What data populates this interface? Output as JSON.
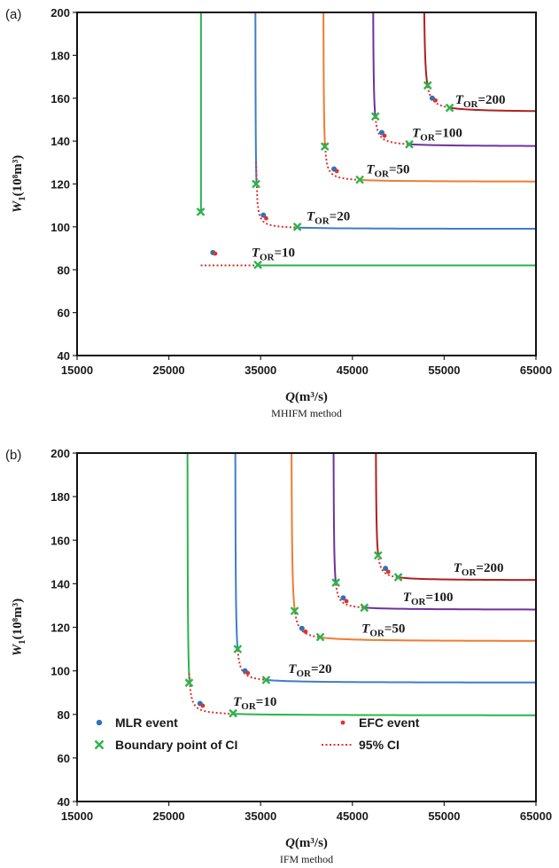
{
  "panels": [
    {
      "panel_label": "(a)",
      "caption": "MHIFM method",
      "x_label_main": "Q",
      "x_label_unit": "(m³/s)",
      "y_label_main": "W",
      "y_label_sub": "1",
      "y_label_unit": "(10⁸m³)"
    },
    {
      "panel_label": "(b)",
      "caption": "IFM method",
      "x_label_main": "Q",
      "x_label_unit": "(m³/s)",
      "y_label_main": "W",
      "y_label_sub": "1",
      "y_label_unit": "(10⁸m³)"
    }
  ],
  "legend": {
    "mlr": "MLR event",
    "efc": "EFC event",
    "boundary": "Boundary point of CI",
    "ci": "95% CI"
  },
  "colors": {
    "T10": "#2db34a",
    "T20": "#3f7dc7",
    "T50": "#ed7d31",
    "T100": "#7030a0",
    "T200": "#b02020",
    "mlr_marker": "#2e75b6",
    "efc_marker": "#e03030",
    "boundary_marker": "#2db34a",
    "ci_line": "#e03030"
  },
  "chart_data": [
    {
      "type": "line",
      "title": "",
      "xlabel": "Q(m³/s)",
      "ylabel": "W1(10⁸m³)",
      "xlim": [
        15000,
        65000
      ],
      "ylim": [
        40,
        200
      ],
      "xticks": [
        15000,
        25000,
        35000,
        45000,
        55000,
        65000
      ],
      "yticks": [
        40,
        60,
        80,
        100,
        120,
        140,
        160,
        180,
        200
      ],
      "series": [
        {
          "name": "T_OR=10",
          "label_main": "T",
          "label_sub": "OR",
          "label_value": "=10",
          "color_key": "T10",
          "Qa": 28500,
          "Wa": 82,
          "crit": [
            {
              "q": 28470,
              "w": 107
            },
            {
              "q": 34700,
              "w": 82.3
            }
          ],
          "mlr": [
            29800,
            88
          ],
          "efc": [
            30050,
            87.5
          ],
          "label_at": [
            34000,
            86
          ]
        },
        {
          "name": "T_OR=20",
          "label_main": "T",
          "label_sub": "OR",
          "label_value": "=20",
          "color_key": "T20",
          "Qa": 34400,
          "Wa": 99,
          "crit": [
            {
              "q": 34500,
              "w": 120
            },
            {
              "q": 39000,
              "w": 100
            }
          ],
          "mlr": [
            35300,
            105.5
          ],
          "efc": [
            35600,
            104
          ],
          "label_at": [
            40000,
            103
          ]
        },
        {
          "name": "T_OR=50",
          "label_main": "T",
          "label_sub": "OR",
          "label_value": "=50",
          "color_key": "T50",
          "Qa": 41800,
          "Wa": 121,
          "crit": [
            {
              "q": 42000,
              "w": 137.5
            },
            {
              "q": 45800,
              "w": 122
            }
          ],
          "mlr": [
            43000,
            127
          ],
          "efc": [
            43300,
            126
          ],
          "label_at": [
            46500,
            125
          ]
        },
        {
          "name": "T_OR=100",
          "label_main": "T",
          "label_sub": "OR",
          "label_value": "=100",
          "color_key": "T100",
          "Qa": 47200,
          "Wa": 137.5,
          "crit": [
            {
              "q": 47500,
              "w": 151.5
            },
            {
              "q": 51200,
              "w": 138.5
            }
          ],
          "mlr": [
            48200,
            144
          ],
          "efc": [
            48500,
            142.5
          ],
          "label_at": [
            51500,
            142
          ]
        },
        {
          "name": "T_OR=200",
          "label_main": "T",
          "label_sub": "OR",
          "label_value": "=200",
          "color_key": "T200",
          "Qa": 52700,
          "Wa": 153.5,
          "crit": [
            {
              "q": 53200,
              "w": 166
            },
            {
              "q": 55600,
              "w": 155.5
            }
          ],
          "mlr": [
            53700,
            160
          ],
          "efc": [
            54050,
            159
          ],
          "label_at": [
            56200,
            157.5
          ]
        }
      ]
    },
    {
      "type": "line",
      "title": "",
      "xlabel": "Q(m³/s)",
      "ylabel": "W1(10⁸m³)",
      "xlim": [
        15000,
        65000
      ],
      "ylim": [
        40,
        200
      ],
      "xticks": [
        15000,
        25000,
        35000,
        45000,
        55000,
        65000
      ],
      "yticks": [
        40,
        60,
        80,
        100,
        120,
        140,
        160,
        180,
        200
      ],
      "series": [
        {
          "name": "T_OR=10",
          "label_main": "T",
          "label_sub": "OR",
          "label_value": "=10",
          "color_key": "T10",
          "Qa": 27000,
          "Wa": 79.5,
          "crit": [
            {
              "q": 27200,
              "w": 94.5
            },
            {
              "q": 32000,
              "w": 80.5
            }
          ],
          "mlr": [
            28400,
            85
          ],
          "efc": [
            28700,
            84
          ],
          "label_at": [
            32000,
            84
          ]
        },
        {
          "name": "T_OR=20",
          "label_main": "T",
          "label_sub": "OR",
          "label_value": "=20",
          "color_key": "T20",
          "Qa": 32200,
          "Wa": 94.5,
          "crit": [
            {
              "q": 32500,
              "w": 110
            },
            {
              "q": 35600,
              "w": 95.8
            }
          ],
          "mlr": [
            33300,
            100
          ],
          "efc": [
            33600,
            99
          ],
          "label_at": [
            38000,
            99
          ]
        },
        {
          "name": "T_OR=50",
          "label_main": "T",
          "label_sub": "OR",
          "label_value": "=50",
          "color_key": "T50",
          "Qa": 38300,
          "Wa": 113.5,
          "crit": [
            {
              "q": 38700,
              "w": 127.5
            },
            {
              "q": 41500,
              "w": 115.5
            }
          ],
          "mlr": [
            39500,
            119.5
          ],
          "efc": [
            39900,
            118
          ],
          "label_at": [
            46000,
            117.5
          ]
        },
        {
          "name": "T_OR=100",
          "label_main": "T",
          "label_sub": "OR",
          "label_value": "=100",
          "color_key": "T100",
          "Qa": 42900,
          "Wa": 128,
          "crit": [
            {
              "q": 43200,
              "w": 140.5
            },
            {
              "q": 46300,
              "w": 129
            }
          ],
          "mlr": [
            44000,
            133.5
          ],
          "efc": [
            44350,
            132
          ],
          "label_at": [
            50500,
            132
          ]
        },
        {
          "name": "T_OR=200",
          "label_main": "T",
          "label_sub": "OR",
          "label_value": "=200",
          "color_key": "T200",
          "Qa": 47500,
          "Wa": 141.5,
          "crit": [
            {
              "q": 47800,
              "w": 153
            },
            {
              "q": 50000,
              "w": 143
            }
          ],
          "mlr": [
            48600,
            147
          ],
          "efc": [
            48900,
            145.5
          ],
          "label_at": [
            56000,
            145.5
          ]
        }
      ]
    }
  ]
}
